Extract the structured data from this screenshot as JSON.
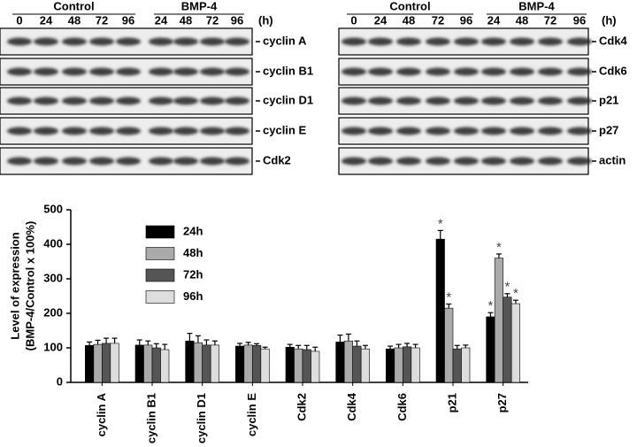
{
  "blots": [
    {
      "groups": [
        "Control",
        "BMP-4"
      ],
      "lanes": [
        0,
        24,
        48,
        72,
        96,
        24,
        48,
        72,
        96
      ],
      "unit": "(h)",
      "rows": [
        "cyclin A",
        "cyclin B1",
        "cyclin D1",
        "cyclin E",
        "Cdk2"
      ]
    },
    {
      "groups": [
        "Control",
        "BMP-4"
      ],
      "lanes": [
        0,
        24,
        48,
        72,
        96,
        24,
        48,
        72,
        96
      ],
      "unit": "(h)",
      "rows": [
        "Cdk4",
        "Cdk6",
        "p21",
        "p27",
        "actin"
      ]
    }
  ],
  "chart_data": {
    "type": "bar",
    "y_label": [
      "Level of expression",
      "(BMP-4/Control x 100%)"
    ],
    "categories": [
      "cyclin A",
      "cyclin B1",
      "cyclin D1",
      "cyclin E",
      "Cdk2",
      "Cdk4",
      "Cdk6",
      "p21",
      "p27"
    ],
    "series": [
      {
        "name": "24h",
        "color": "#000000",
        "values": [
          107,
          108,
          120,
          105,
          102,
          117,
          97,
          415,
          190
        ],
        "errors": [
          10,
          15,
          22,
          8,
          8,
          20,
          8,
          25,
          12
        ],
        "significance": [
          null,
          null,
          null,
          null,
          null,
          null,
          null,
          "*",
          "*"
        ]
      },
      {
        "name": "48h",
        "color": "#aaaaaa",
        "values": [
          110,
          108,
          115,
          108,
          97,
          120,
          100,
          215,
          360
        ],
        "errors": [
          12,
          12,
          20,
          8,
          10,
          20,
          10,
          12,
          12
        ],
        "significance": [
          null,
          null,
          null,
          null,
          null,
          null,
          null,
          "*",
          "*"
        ]
      },
      {
        "name": "72h",
        "color": "#555555",
        "values": [
          113,
          100,
          108,
          107,
          95,
          105,
          103,
          97,
          247
        ],
        "errors": [
          15,
          12,
          15,
          5,
          12,
          15,
          10,
          10,
          10
        ],
        "significance": [
          null,
          null,
          null,
          null,
          null,
          null,
          null,
          null,
          "*"
        ]
      },
      {
        "name": "96h",
        "color": "#dddddd",
        "values": [
          113,
          95,
          108,
          97,
          90,
          97,
          100,
          100,
          228
        ],
        "errors": [
          15,
          15,
          12,
          5,
          12,
          10,
          10,
          8,
          10
        ],
        "significance": [
          null,
          null,
          null,
          null,
          null,
          null,
          null,
          null,
          "*"
        ]
      }
    ],
    "ylim": [
      0,
      500
    ],
    "yticks": [
      0,
      100,
      200,
      300,
      400,
      500
    ],
    "legend": "upper left"
  }
}
